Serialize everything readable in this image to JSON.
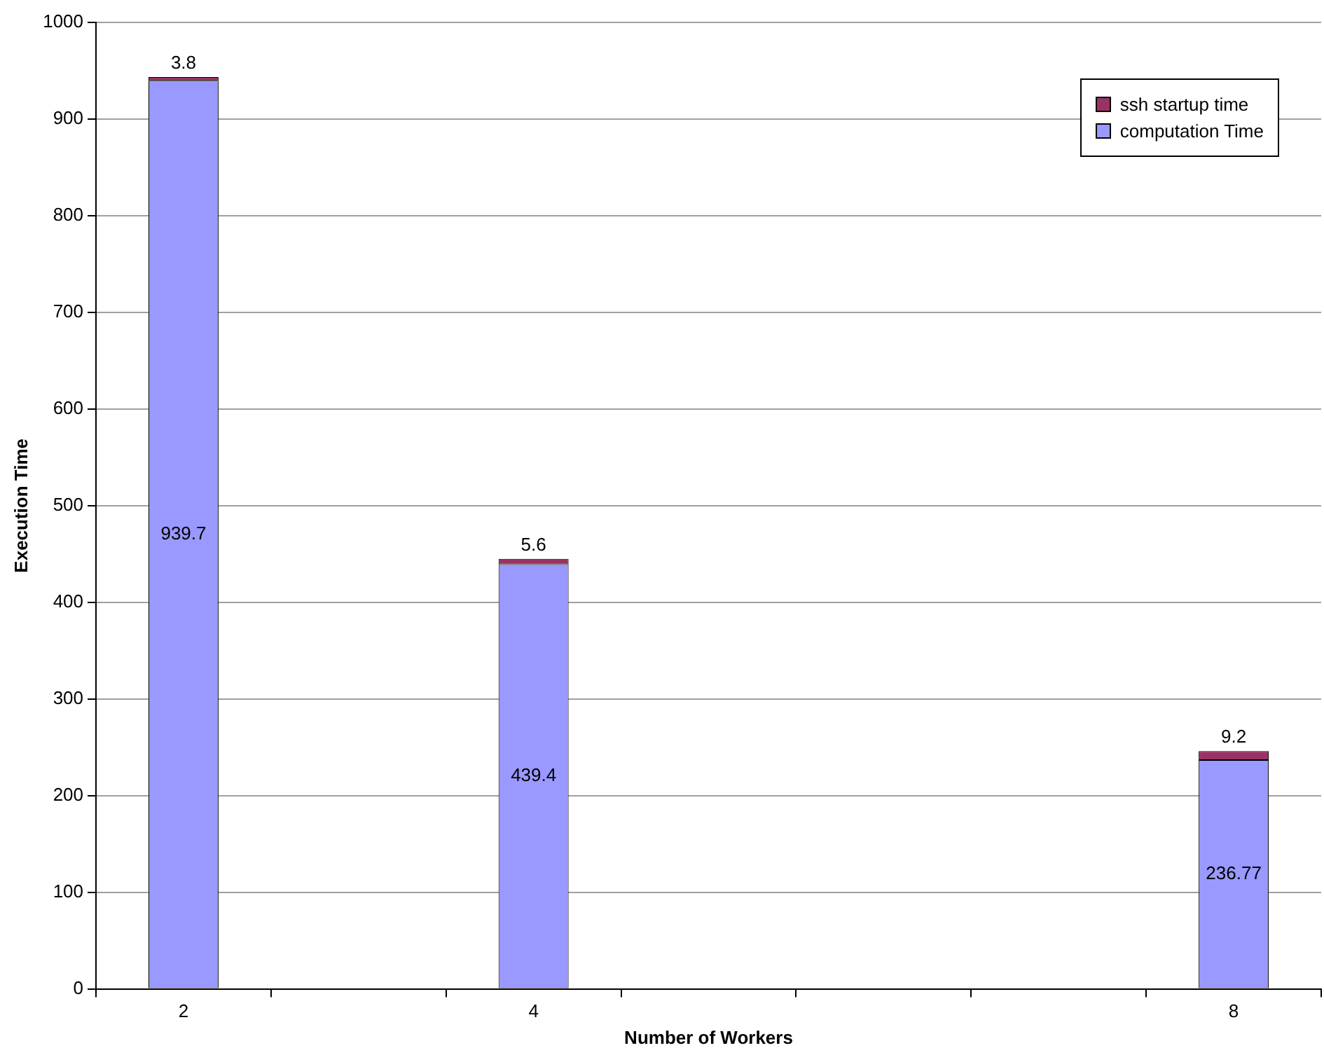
{
  "chart_data": {
    "type": "bar",
    "xlabel": "Number of Workers",
    "ylabel": "Execution Time",
    "categories": [
      "2",
      null,
      "4",
      null,
      null,
      null,
      "8"
    ],
    "stacked": true,
    "series": [
      {
        "name": "computation Time",
        "color": "#9999ff",
        "values": [
          939.7,
          null,
          439.4,
          null,
          null,
          null,
          236.77
        ]
      },
      {
        "name": "ssh startup time",
        "color": "#993366",
        "values": [
          3.8,
          null,
          5.6,
          null,
          null,
          null,
          9.2
        ]
      }
    ],
    "ylim": [
      0,
      1000
    ],
    "yticks": [
      0,
      100,
      200,
      300,
      400,
      500,
      600,
      700,
      800,
      900,
      1000
    ],
    "grid": "y",
    "legend": "top right",
    "data_labels": true
  }
}
